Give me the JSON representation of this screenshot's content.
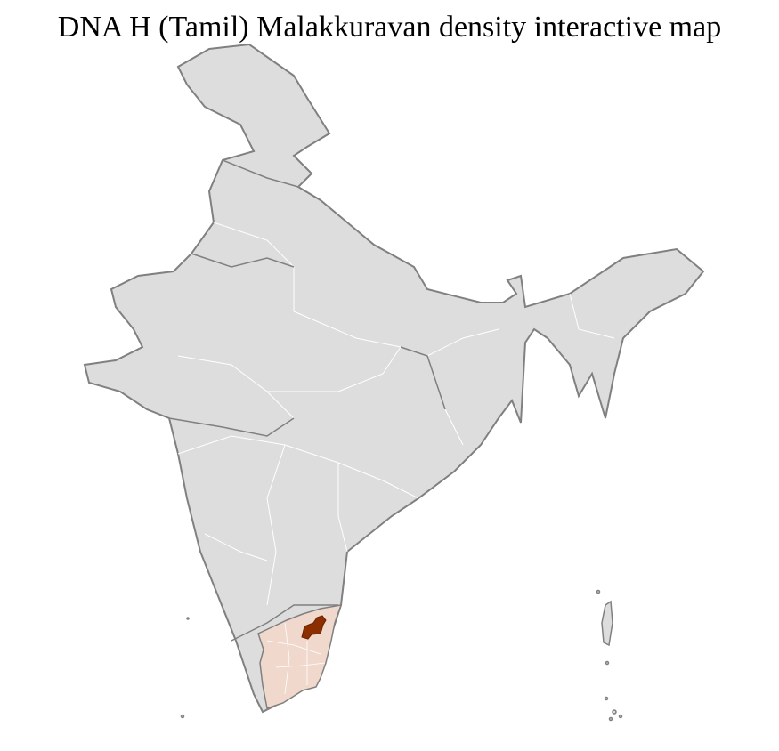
{
  "title": "DNA H (Tamil) Malakkuravan density interactive map",
  "colors": {
    "base_fill": "#dddddd",
    "border": "#808080",
    "internal_border": "#ffffff",
    "state_highlight": "#f0d9cc",
    "district_highlight": "#8b2e00"
  },
  "regions": {
    "highlighted_state": "Tamil Nadu",
    "highlighted_district_level": "max"
  }
}
